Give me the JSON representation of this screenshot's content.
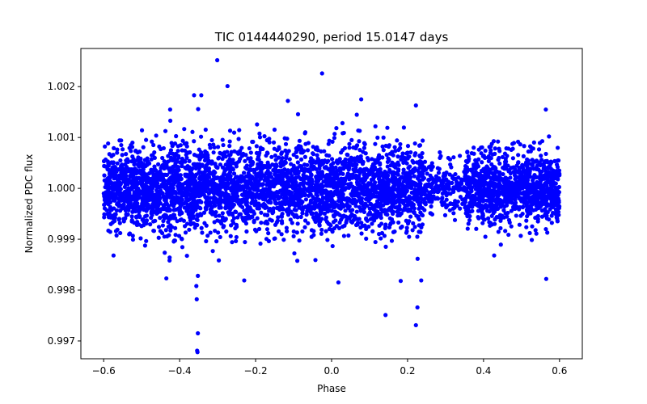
{
  "chart_data": {
    "type": "scatter",
    "title": "TIC 0144440290, period 15.0147 days",
    "xlabel": "Phase",
    "ylabel": "Normalized PDC flux",
    "xlim": [
      -0.66,
      0.66
    ],
    "ylim": [
      0.99665,
      1.00275
    ],
    "xticks": [
      -0.6,
      -0.4,
      -0.2,
      0.0,
      0.2,
      0.4,
      0.6
    ],
    "xtick_labels": [
      "−0.6",
      "−0.4",
      "−0.2",
      "0.0",
      "0.2",
      "0.4",
      "0.6"
    ],
    "yticks": [
      0.997,
      0.998,
      0.999,
      1.0,
      1.001,
      1.002
    ],
    "ytick_labels": [
      "0.997",
      "0.998",
      "0.999",
      "1.000",
      "1.001",
      "1.002"
    ],
    "grid": false,
    "marker_color": "#0000ff",
    "series": [
      {
        "name": "PDC flux",
        "x_range": [
          -0.6,
          0.6
        ],
        "dense_band": [
          0.9992,
          1.0008
        ],
        "gap_region": [
          0.24,
          0.35
        ],
        "notable_points": [
          {
            "x": -0.301,
            "y": 1.00252
          },
          {
            "x": -0.274,
            "y": 1.00201
          },
          {
            "x": -0.025,
            "y": 1.00226
          },
          {
            "x": -0.115,
            "y": 1.00172
          },
          {
            "x": 0.078,
            "y": 1.00175
          },
          {
            "x": 0.222,
            "y": 1.00163
          },
          {
            "x": 0.564,
            "y": 1.00155
          },
          {
            "x": -0.362,
            "y": 1.00183
          },
          {
            "x": -0.343,
            "y": 1.00183
          },
          {
            "x": -0.425,
            "y": 1.00155
          },
          {
            "x": -0.353,
            "y": 0.99678
          },
          {
            "x": -0.354,
            "y": 0.99681
          },
          {
            "x": -0.352,
            "y": 0.99715
          },
          {
            "x": -0.355,
            "y": 0.99782
          },
          {
            "x": -0.356,
            "y": 0.99808
          },
          {
            "x": -0.352,
            "y": 0.99828
          },
          {
            "x": -0.435,
            "y": 0.99823
          },
          {
            "x": -0.23,
            "y": 0.99819
          },
          {
            "x": 0.142,
            "y": 0.99751
          },
          {
            "x": 0.222,
            "y": 0.99731
          },
          {
            "x": 0.226,
            "y": 0.99766
          },
          {
            "x": 0.236,
            "y": 0.99819
          },
          {
            "x": 0.018,
            "y": 0.99815
          },
          {
            "x": 0.182,
            "y": 0.99818
          },
          {
            "x": -0.574,
            "y": 0.99868
          },
          {
            "x": 0.565,
            "y": 0.99822
          },
          {
            "x": 0.428,
            "y": 0.99868
          }
        ]
      }
    ]
  }
}
